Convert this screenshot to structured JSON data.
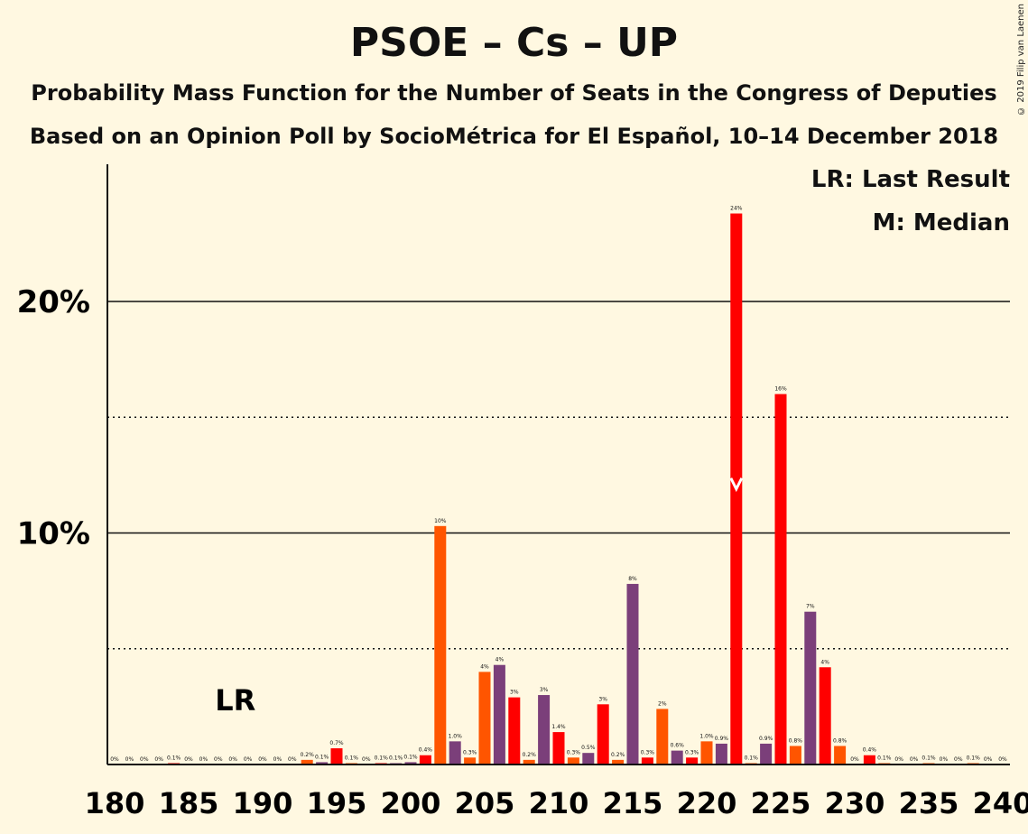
{
  "chart_data": {
    "type": "bar",
    "title": "PSOE – Cs – UP",
    "subtitle": "Probability Mass Function for the Number of Seats in the Congress of Deputies",
    "subtitle2": "Based on an Opinion Poll by SocioMétrica for El Español, 10–14 December 2018",
    "copyright": "© 2019 Filip van Laenen",
    "legend": [
      "LR: Last Result",
      "M: Median"
    ],
    "lr_label": "LR",
    "last_result_seat": 188,
    "median_seat": 222,
    "xlim": [
      180,
      240
    ],
    "ylim": [
      0,
      25
    ],
    "x_ticks": [
      180,
      185,
      190,
      195,
      200,
      205,
      210,
      215,
      220,
      225,
      230,
      235,
      240
    ],
    "y_ticks": [
      {
        "value": 10,
        "label": "10%"
      },
      {
        "value": 20,
        "label": "20%"
      }
    ],
    "y_dotted": [
      5,
      15
    ],
    "colors": {
      "psoe": "#ff0000",
      "cs": "#ff5500",
      "up": "#7b3f7a",
      "background": "#fff8e1"
    },
    "bars": [
      {
        "x": 180,
        "value": 0,
        "label": "0%",
        "color": "#ff0000"
      },
      {
        "x": 181,
        "value": 0,
        "label": "0%",
        "color": "#ff0000"
      },
      {
        "x": 182,
        "value": 0,
        "label": "0%",
        "color": "#ff0000"
      },
      {
        "x": 183,
        "value": 0,
        "label": "0%",
        "color": "#ff0000"
      },
      {
        "x": 184,
        "value": 0.05,
        "label": "0.1%",
        "color": "#ff0000"
      },
      {
        "x": 185,
        "value": 0,
        "label": "0%",
        "color": "#ff0000"
      },
      {
        "x": 186,
        "value": 0,
        "label": "0%",
        "color": "#ff0000"
      },
      {
        "x": 187,
        "value": 0,
        "label": "0%",
        "color": "#ff0000"
      },
      {
        "x": 188,
        "value": 0,
        "label": "0%",
        "color": "#ff0000"
      },
      {
        "x": 189,
        "value": 0,
        "label": "0%",
        "color": "#ff0000"
      },
      {
        "x": 190,
        "value": 0,
        "label": "0%",
        "color": "#ff0000"
      },
      {
        "x": 191,
        "value": 0,
        "label": "0%",
        "color": "#ff0000"
      },
      {
        "x": 192,
        "value": 0,
        "label": "0%",
        "color": "#ff0000"
      },
      {
        "x": 193,
        "value": 0.2,
        "label": "0.2%",
        "color": "#ff5500"
      },
      {
        "x": 194,
        "value": 0.1,
        "label": "0.1%",
        "color": "#7b3f7a"
      },
      {
        "x": 195,
        "value": 0.7,
        "label": "0.7%",
        "color": "#ff0000"
      },
      {
        "x": 196,
        "value": 0.05,
        "label": "0.1%",
        "color": "#ff5500"
      },
      {
        "x": 197,
        "value": 0,
        "label": "0%",
        "color": "#ff0000"
      },
      {
        "x": 198,
        "value": 0.05,
        "label": "0.1%",
        "color": "#ff0000"
      },
      {
        "x": 199,
        "value": 0.05,
        "label": "0.1%",
        "color": "#7b3f7a"
      },
      {
        "x": 200,
        "value": 0.1,
        "label": "0.1%",
        "color": "#7b3f7a"
      },
      {
        "x": 201,
        "value": 0.4,
        "label": "0.4%",
        "color": "#ff0000"
      },
      {
        "x": 202,
        "value": 10.3,
        "label": "10%",
        "color": "#ff5500"
      },
      {
        "x": 203,
        "value": 1.0,
        "label": "1.0%",
        "color": "#7b3f7a"
      },
      {
        "x": 204,
        "value": 0.3,
        "label": "0.3%",
        "color": "#ff5500"
      },
      {
        "x": 205,
        "value": 4.0,
        "label": "4%",
        "color": "#ff5500"
      },
      {
        "x": 206,
        "value": 4.3,
        "label": "4%",
        "color": "#7b3f7a"
      },
      {
        "x": 207,
        "value": 2.9,
        "label": "3%",
        "color": "#ff0000"
      },
      {
        "x": 208,
        "value": 0.2,
        "label": "0.2%",
        "color": "#ff5500"
      },
      {
        "x": 209,
        "value": 3.0,
        "label": "3%",
        "color": "#7b3f7a"
      },
      {
        "x": 210,
        "value": 1.4,
        "label": "1.4%",
        "color": "#ff0000"
      },
      {
        "x": 211,
        "value": 0.3,
        "label": "0.3%",
        "color": "#ff5500"
      },
      {
        "x": 212,
        "value": 0.5,
        "label": "0.5%",
        "color": "#7b3f7a"
      },
      {
        "x": 213,
        "value": 2.6,
        "label": "3%",
        "color": "#ff0000"
      },
      {
        "x": 214,
        "value": 0.2,
        "label": "0.2%",
        "color": "#ff5500"
      },
      {
        "x": 215,
        "value": 7.8,
        "label": "8%",
        "color": "#7b3f7a"
      },
      {
        "x": 216,
        "value": 0.3,
        "label": "0.3%",
        "color": "#ff0000"
      },
      {
        "x": 217,
        "value": 2.4,
        "label": "2%",
        "color": "#ff5500"
      },
      {
        "x": 218,
        "value": 0.6,
        "label": "0.6%",
        "color": "#7b3f7a"
      },
      {
        "x": 219,
        "value": 0.3,
        "label": "0.3%",
        "color": "#ff0000"
      },
      {
        "x": 220,
        "value": 1.0,
        "label": "1.0%",
        "color": "#ff5500"
      },
      {
        "x": 221,
        "value": 0.9,
        "label": "0.9%",
        "color": "#7b3f7a"
      },
      {
        "x": 222,
        "value": 23.8,
        "label": "24%",
        "color": "#ff0000"
      },
      {
        "x": 223,
        "value": 0.05,
        "label": "0.1%",
        "color": "#ff5500"
      },
      {
        "x": 224,
        "value": 0.9,
        "label": "0.9%",
        "color": "#7b3f7a"
      },
      {
        "x": 225,
        "value": 16.0,
        "label": "16%",
        "color": "#ff0000"
      },
      {
        "x": 226,
        "value": 0.8,
        "label": "0.8%",
        "color": "#ff5500"
      },
      {
        "x": 227,
        "value": 6.6,
        "label": "7%",
        "color": "#7b3f7a"
      },
      {
        "x": 228,
        "value": 4.2,
        "label": "4%",
        "color": "#ff0000"
      },
      {
        "x": 229,
        "value": 0.8,
        "label": "0.8%",
        "color": "#ff5500"
      },
      {
        "x": 230,
        "value": 0,
        "label": "0%",
        "color": "#7b3f7a"
      },
      {
        "x": 231,
        "value": 0.4,
        "label": "0.4%",
        "color": "#ff0000"
      },
      {
        "x": 232,
        "value": 0.05,
        "label": "0.1%",
        "color": "#ff5500"
      },
      {
        "x": 233,
        "value": 0,
        "label": "0%",
        "color": "#7b3f7a"
      },
      {
        "x": 234,
        "value": 0,
        "label": "0%",
        "color": "#ff0000"
      },
      {
        "x": 235,
        "value": 0.05,
        "label": "0.1%",
        "color": "#ff5500"
      },
      {
        "x": 236,
        "value": 0,
        "label": "0%",
        "color": "#7b3f7a"
      },
      {
        "x": 237,
        "value": 0,
        "label": "0%",
        "color": "#ff0000"
      },
      {
        "x": 238,
        "value": 0.05,
        "label": "0.1%",
        "color": "#ff5500"
      },
      {
        "x": 239,
        "value": 0,
        "label": "0%",
        "color": "#7b3f7a"
      },
      {
        "x": 240,
        "value": 0,
        "label": "0%",
        "color": "#ff0000"
      }
    ]
  }
}
